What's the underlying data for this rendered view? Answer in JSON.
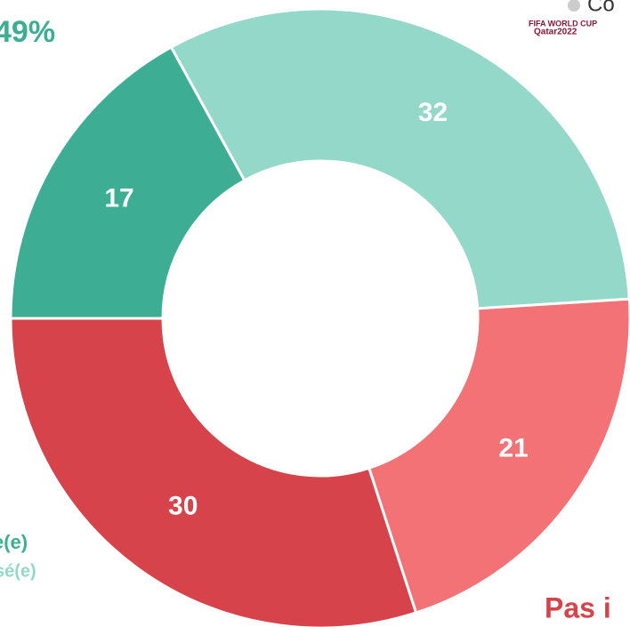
{
  "chart_data": {
    "type": "donut",
    "values": [
      32,
      21,
      30,
      17
    ],
    "colors": [
      "#93d8c9",
      "#f27275",
      "#d6434a",
      "#3dae94"
    ],
    "annotations": [
      "49%",
      "Co",
      "e(e)",
      "sé(e)",
      "Pas i"
    ],
    "logo": [
      "FIFA WORLD CUP",
      "Qatar2022"
    ]
  }
}
